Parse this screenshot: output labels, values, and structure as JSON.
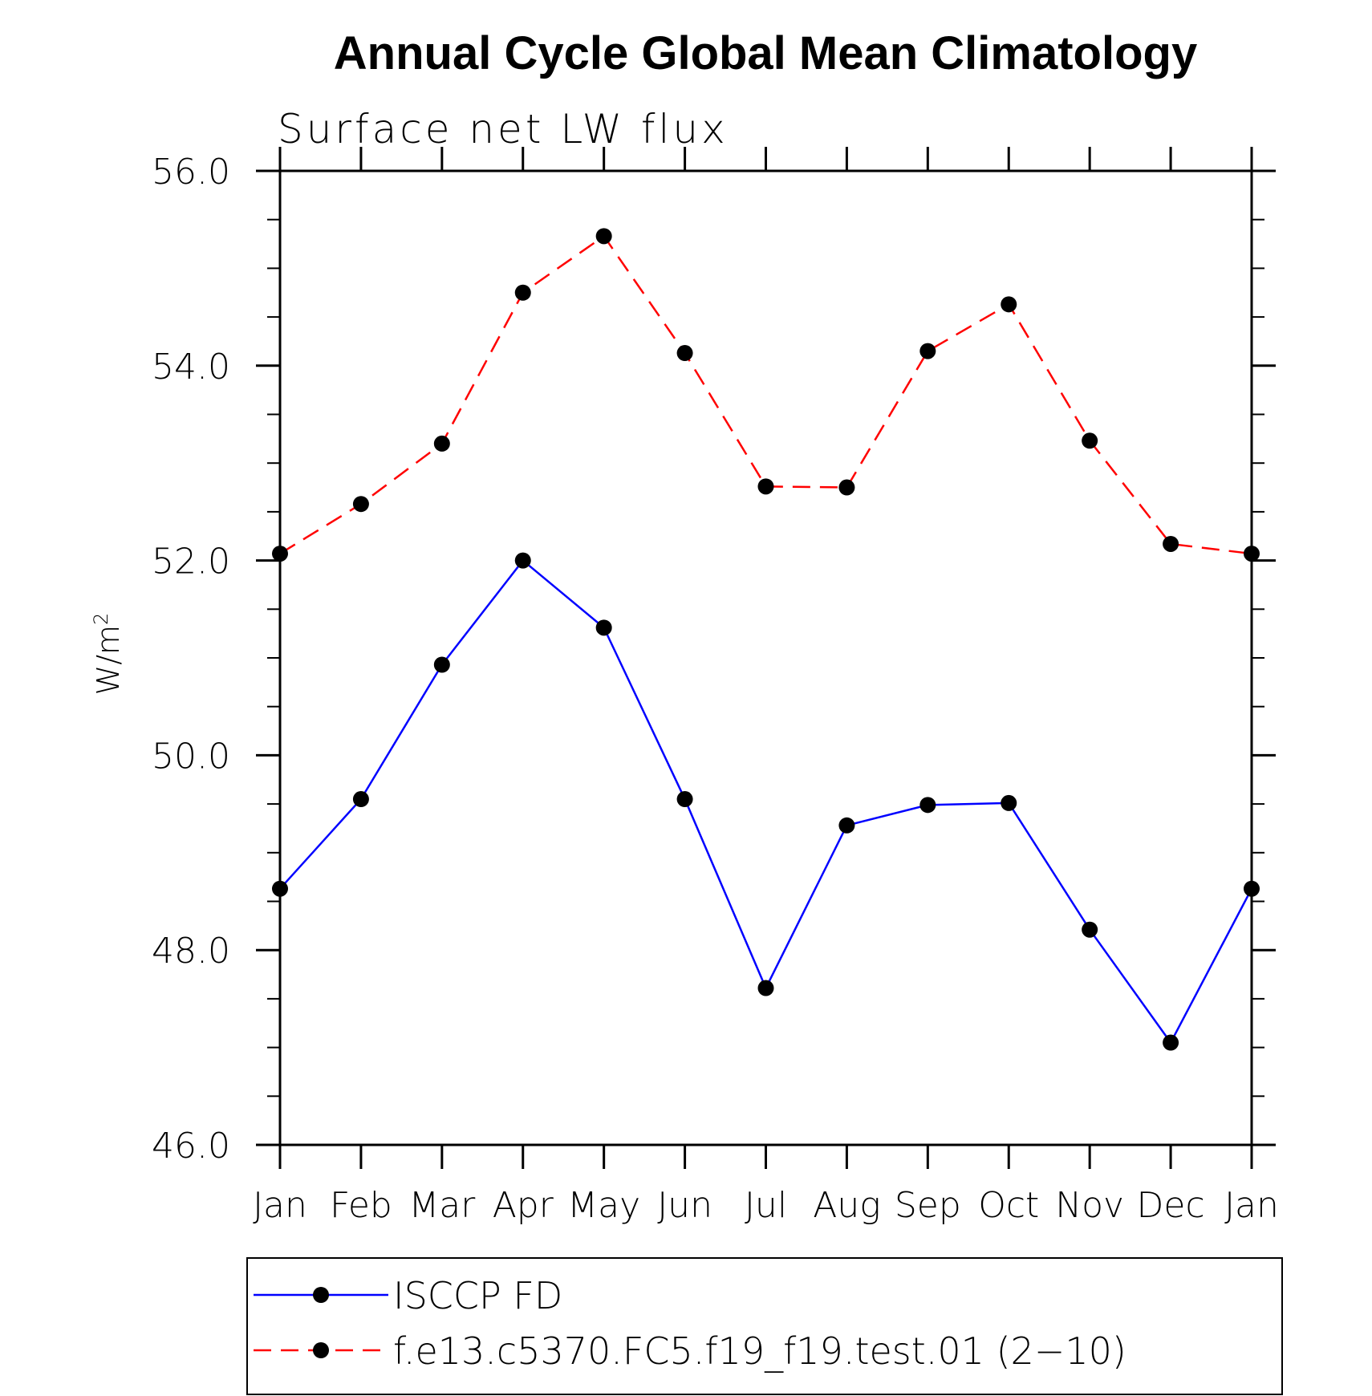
{
  "title": "Annual Cycle Global Mean Climatology",
  "subtitle": "Surface net LW flux",
  "chart_data": {
    "type": "line",
    "title": "Annual Cycle Global Mean Climatology",
    "subtitle": "Surface net LW flux",
    "xlabel": "",
    "ylabel": "W/m",
    "ylabel_superscript": "2",
    "categories": [
      "Jan",
      "Feb",
      "Mar",
      "Apr",
      "May",
      "Jun",
      "Jul",
      "Aug",
      "Sep",
      "Oct",
      "Nov",
      "Dec",
      "Jan"
    ],
    "ylim": [
      46.0,
      56.0
    ],
    "yticks": [
      "46.0",
      "48.0",
      "50.0",
      "52.0",
      "54.0",
      "56.0"
    ],
    "ytick_values": [
      46,
      48,
      50,
      52,
      54,
      56
    ],
    "grid": false,
    "legend_position": "bottom",
    "series": [
      {
        "name": "ISCCP FD",
        "color": "#0000ff",
        "dash": "solid",
        "marker": "filled-circle",
        "values": [
          48.63,
          49.55,
          50.93,
          52.0,
          51.31,
          49.55,
          47.61,
          49.28,
          49.49,
          49.51,
          48.21,
          47.05,
          48.63
        ]
      },
      {
        "name": "f.e13.c5370.FC5.f19_f19.test.01 (2−10)",
        "color": "#ff0000",
        "dash": "dashed",
        "marker": "filled-circle",
        "values": [
          52.07,
          52.58,
          53.2,
          54.75,
          55.33,
          54.13,
          52.76,
          52.75,
          54.15,
          54.63,
          53.23,
          52.17,
          52.07
        ]
      }
    ]
  }
}
